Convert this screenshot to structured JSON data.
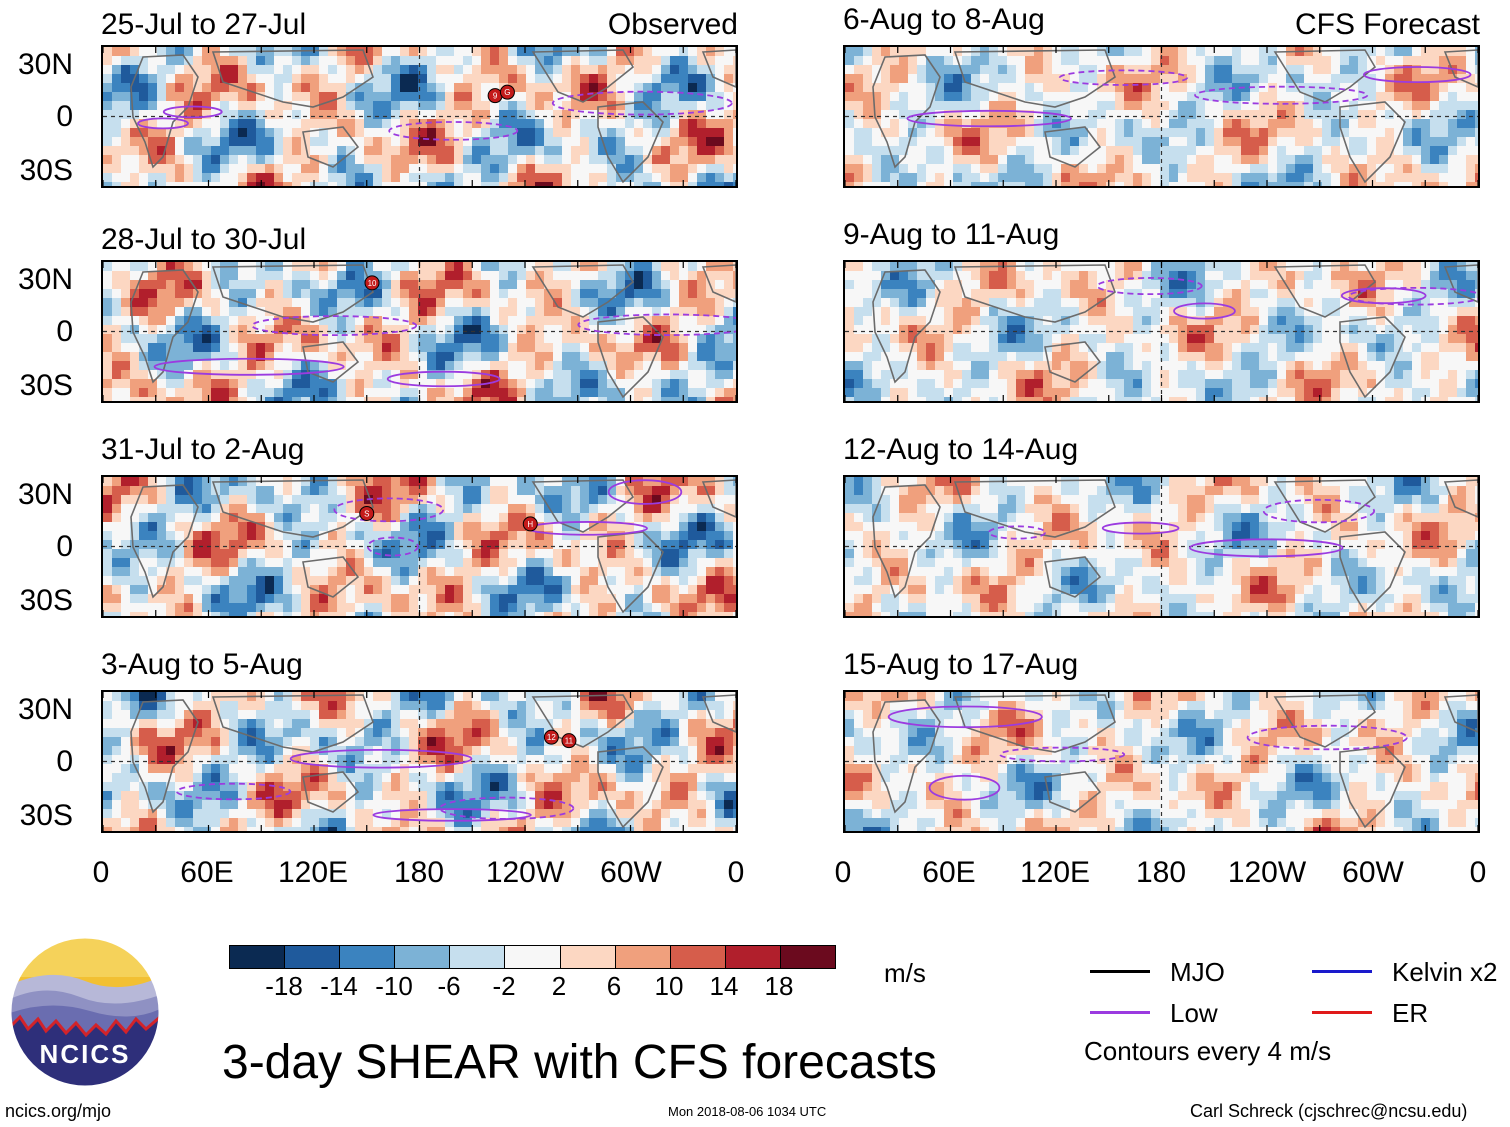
{
  "observed_label": "Observed",
  "forecast_label": "CFS Forecast",
  "panels_left": [
    {
      "title": "25-Jul to 27-Jul",
      "storms": [
        {
          "id": "9",
          "lon_deg": 223,
          "lat_deg": 12
        },
        {
          "id": "G",
          "lon_deg": 230,
          "lat_deg": 14
        }
      ]
    },
    {
      "title": "28-Jul to 30-Jul",
      "storms": [
        {
          "id": "10",
          "lon_deg": 153,
          "lat_deg": 28
        }
      ]
    },
    {
      "title": "31-Jul to 2-Aug",
      "storms": [
        {
          "id": "S",
          "lon_deg": 150,
          "lat_deg": 19
        },
        {
          "id": "H",
          "lon_deg": 243,
          "lat_deg": 13
        }
      ]
    },
    {
      "title": "3-Aug to 5-Aug",
      "storms": [
        {
          "id": "12",
          "lon_deg": 255,
          "lat_deg": 14
        },
        {
          "id": "11",
          "lon_deg": 265,
          "lat_deg": 12
        }
      ]
    }
  ],
  "panels_right": [
    {
      "title": "6-Aug to 8-Aug"
    },
    {
      "title": "9-Aug to 11-Aug"
    },
    {
      "title": "12-Aug to 14-Aug"
    },
    {
      "title": "15-Aug to 17-Aug"
    }
  ],
  "lat_labels": [
    "30N",
    "0",
    "30S"
  ],
  "lon_labels": [
    "0",
    "60E",
    "120E",
    "180",
    "120W",
    "60W",
    "0"
  ],
  "colorbar": {
    "colors": [
      "#0b2a52",
      "#1f5a9c",
      "#3b83bf",
      "#7cb2d6",
      "#c6dfee",
      "#f7f7f7",
      "#fcd7c2",
      "#f0a07d",
      "#d65d4b",
      "#b11f2c",
      "#6b0a1e"
    ],
    "labels": [
      "-18",
      "-14",
      "-10",
      "-6",
      "-2",
      "2",
      "6",
      "10",
      "14",
      "18"
    ],
    "units": "m/s"
  },
  "legend": {
    "items": [
      {
        "label": "MJO",
        "color": "#000000"
      },
      {
        "label": "Kelvin x2",
        "color": "#1a1acc"
      },
      {
        "label": "Low",
        "color": "#9b3be0"
      },
      {
        "label": "ER",
        "color": "#e01a1a"
      }
    ],
    "note": "Contours every 4 m/s"
  },
  "logo_text": "NCICS",
  "main_title": "3-day SHEAR with CFS forecasts",
  "footer_left": "ncics.org/mjo",
  "footer_center": "Mon 2018-08-06 1034 UTC",
  "footer_right": "Carl Schreck (cjschrec@ncsu.edu)"
}
